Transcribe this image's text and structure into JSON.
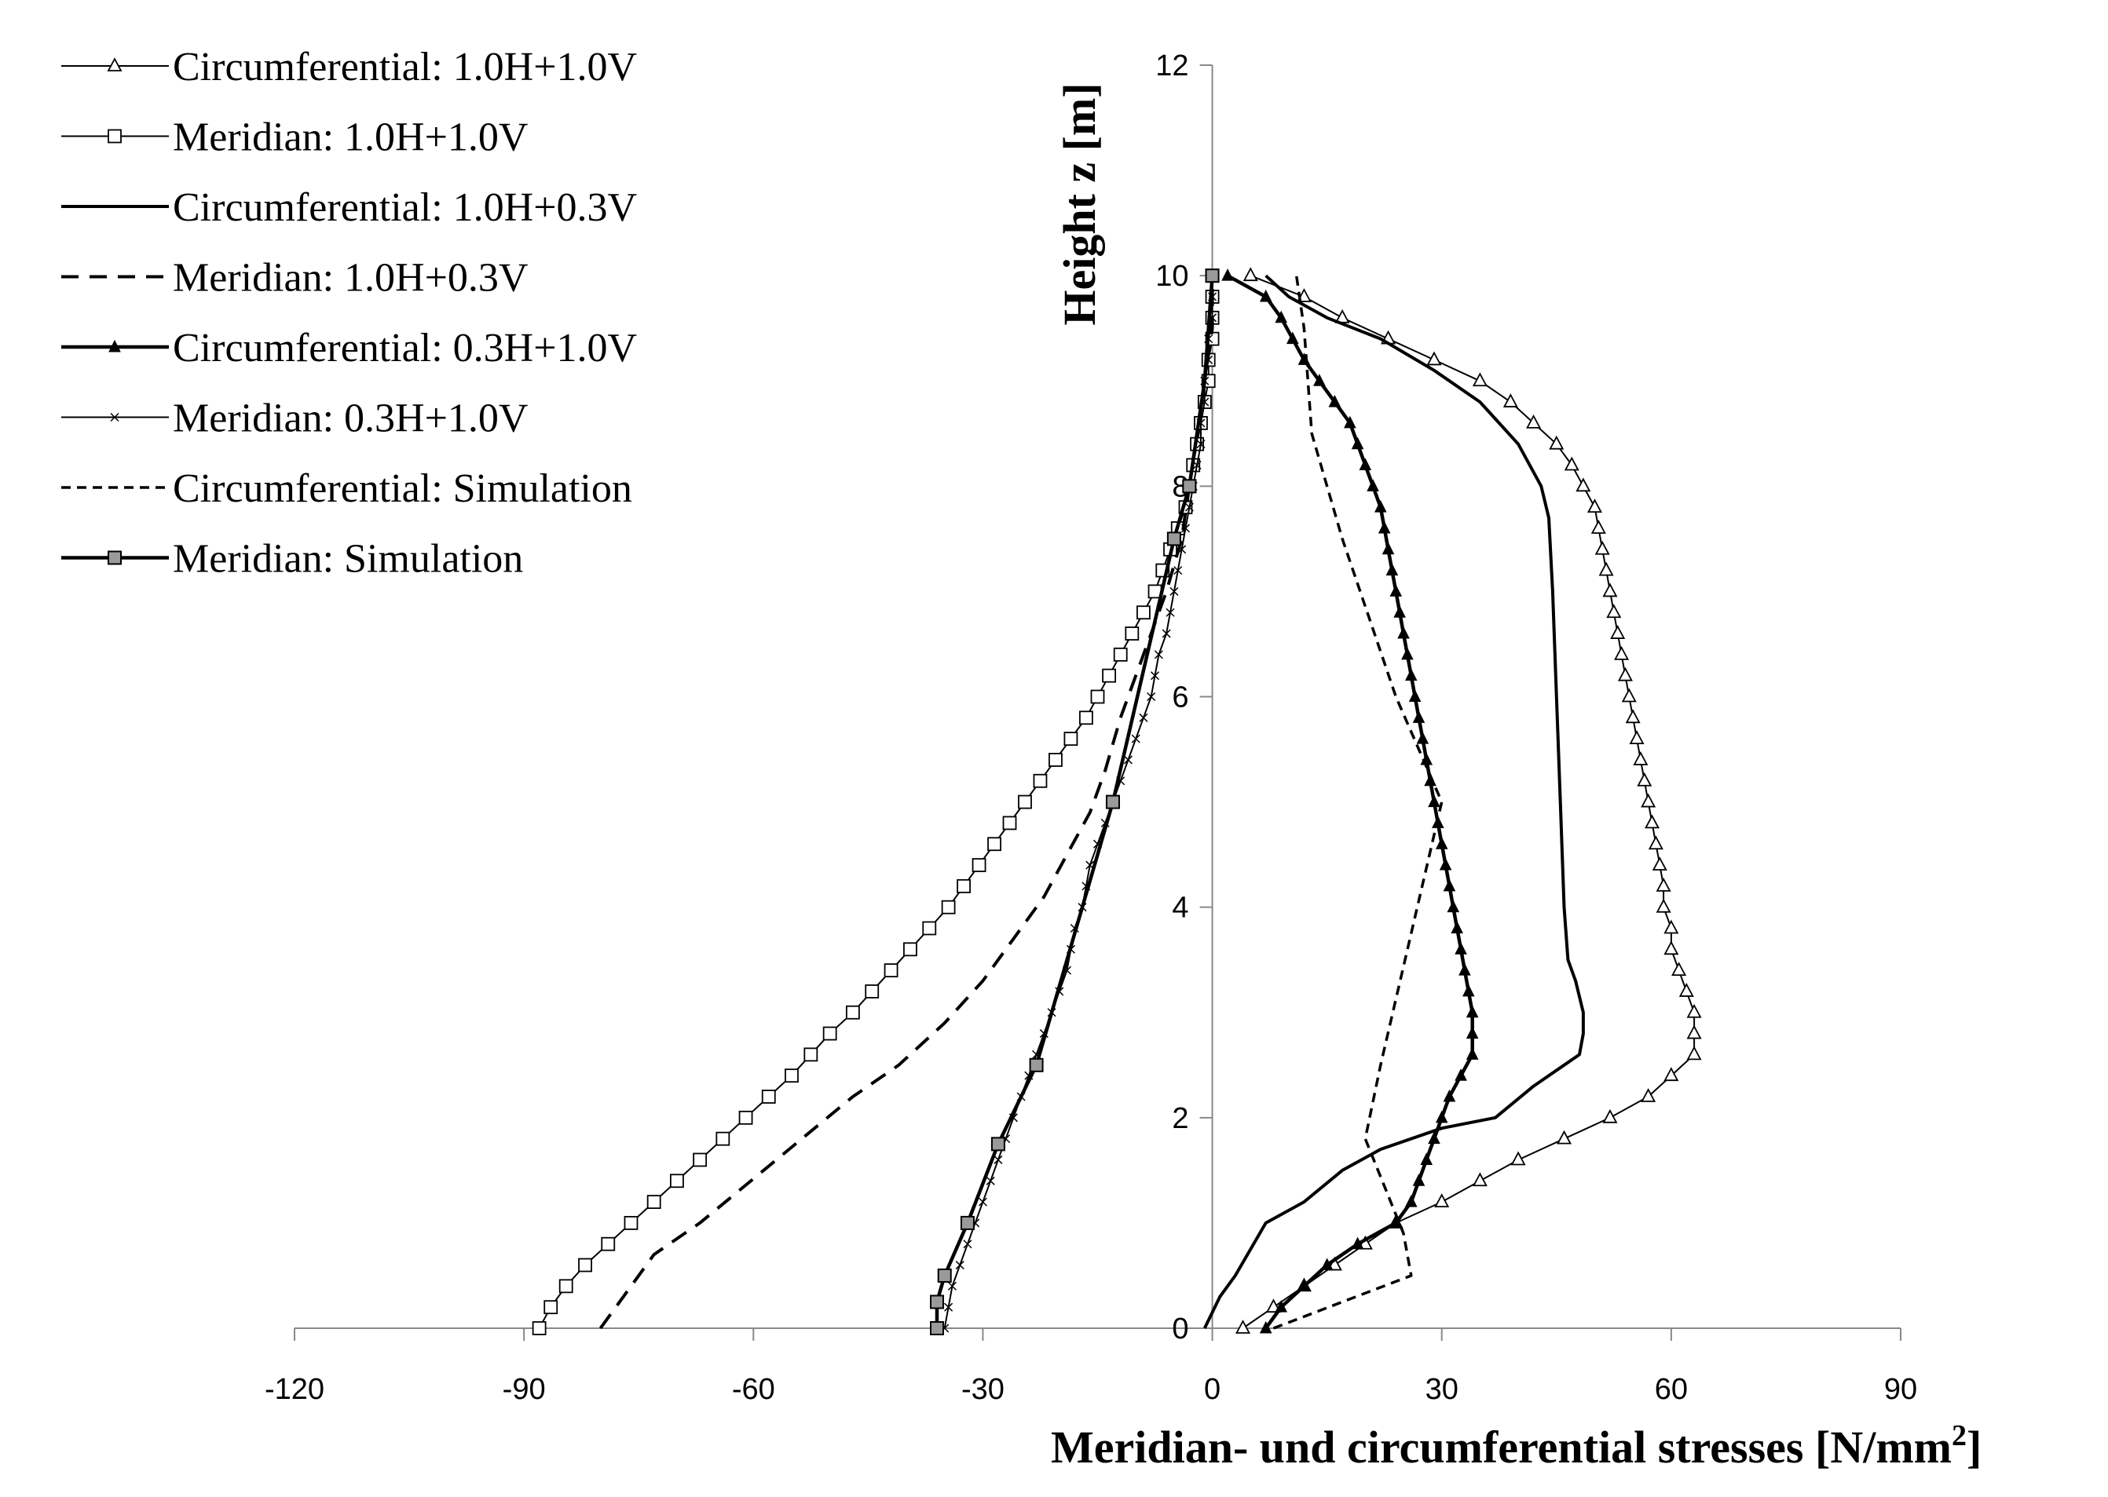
{
  "chart_data": {
    "type": "line",
    "title": "",
    "xlabel": "Meridian- und circumferential stresses [N/mm²]",
    "xlabel_main": "Meridian- und circumferential stresses [N/mm",
    "xlabel_sup": "2",
    "xlabel_end": "]",
    "ylabel": "Height  z [m]",
    "xlim": [
      -120,
      90
    ],
    "ylim": [
      0,
      12
    ],
    "xticks": [
      -120,
      -90,
      -60,
      -30,
      0,
      30,
      60,
      90
    ],
    "xtick_labels": [
      "-120",
      "-90",
      "-60",
      "-30",
      "0",
      "30",
      "60",
      "90"
    ],
    "yticks": [
      0,
      2,
      4,
      6,
      8,
      10,
      12
    ],
    "ytick_labels": [
      "0",
      "2",
      "4",
      "6",
      "8",
      "10",
      "12"
    ],
    "legend_position": "top-left",
    "series": [
      {
        "name": "Circumferential: 1.0H+1.0V",
        "style": "thin",
        "marker": "triangle-open",
        "points": [
          [
            4,
            0
          ],
          [
            8,
            0.2
          ],
          [
            12,
            0.4
          ],
          [
            16,
            0.6
          ],
          [
            20,
            0.8
          ],
          [
            24,
            1.0
          ],
          [
            30,
            1.2
          ],
          [
            35,
            1.4
          ],
          [
            40,
            1.6
          ],
          [
            46,
            1.8
          ],
          [
            52,
            2.0
          ],
          [
            57,
            2.2
          ],
          [
            60,
            2.4
          ],
          [
            63,
            2.6
          ],
          [
            63,
            2.8
          ],
          [
            63,
            3.0
          ],
          [
            62,
            3.2
          ],
          [
            61,
            3.4
          ],
          [
            60,
            3.6
          ],
          [
            60,
            3.8
          ],
          [
            59,
            4.0
          ],
          [
            59,
            4.2
          ],
          [
            58.5,
            4.4
          ],
          [
            58,
            4.6
          ],
          [
            57.5,
            4.8
          ],
          [
            57,
            5.0
          ],
          [
            56.5,
            5.2
          ],
          [
            56,
            5.4
          ],
          [
            55.5,
            5.6
          ],
          [
            55,
            5.8
          ],
          [
            54.5,
            6.0
          ],
          [
            54,
            6.2
          ],
          [
            53.5,
            6.4
          ],
          [
            53,
            6.6
          ],
          [
            52.5,
            6.8
          ],
          [
            52,
            7.0
          ],
          [
            51.5,
            7.2
          ],
          [
            51,
            7.4
          ],
          [
            50.5,
            7.6
          ],
          [
            50,
            7.8
          ],
          [
            48.5,
            8.0
          ],
          [
            47,
            8.2
          ],
          [
            45,
            8.4
          ],
          [
            42,
            8.6
          ],
          [
            39,
            8.8
          ],
          [
            35,
            9.0
          ],
          [
            29,
            9.2
          ],
          [
            23,
            9.4
          ],
          [
            17,
            9.6
          ],
          [
            12,
            9.8
          ],
          [
            5,
            10.0
          ]
        ]
      },
      {
        "name": "Meridian: 1.0H+1.0V",
        "style": "thin",
        "marker": "square-open",
        "points": [
          [
            -88,
            0
          ],
          [
            -86.5,
            0.2
          ],
          [
            -84.5,
            0.4
          ],
          [
            -82,
            0.6
          ],
          [
            -79,
            0.8
          ],
          [
            -76,
            1.0
          ],
          [
            -73,
            1.2
          ],
          [
            -70,
            1.4
          ],
          [
            -67,
            1.6
          ],
          [
            -64,
            1.8
          ],
          [
            -61,
            2.0
          ],
          [
            -58,
            2.2
          ],
          [
            -55,
            2.4
          ],
          [
            -52.5,
            2.6
          ],
          [
            -50,
            2.8
          ],
          [
            -47,
            3.0
          ],
          [
            -44.5,
            3.2
          ],
          [
            -42,
            3.4
          ],
          [
            -39.5,
            3.6
          ],
          [
            -37,
            3.8
          ],
          [
            -34.5,
            4.0
          ],
          [
            -32.5,
            4.2
          ],
          [
            -30.5,
            4.4
          ],
          [
            -28.5,
            4.6
          ],
          [
            -26.5,
            4.8
          ],
          [
            -24.5,
            5.0
          ],
          [
            -22.5,
            5.2
          ],
          [
            -20.5,
            5.4
          ],
          [
            -18.5,
            5.6
          ],
          [
            -16.5,
            5.8
          ],
          [
            -15,
            6.0
          ],
          [
            -13.5,
            6.2
          ],
          [
            -12,
            6.4
          ],
          [
            -10.5,
            6.6
          ],
          [
            -9,
            6.8
          ],
          [
            -7.5,
            7.0
          ],
          [
            -6.5,
            7.2
          ],
          [
            -5.5,
            7.4
          ],
          [
            -4.5,
            7.6
          ],
          [
            -3.5,
            7.8
          ],
          [
            -3,
            8.0
          ],
          [
            -2.5,
            8.2
          ],
          [
            -2,
            8.4
          ],
          [
            -1.5,
            8.6
          ],
          [
            -1,
            8.8
          ],
          [
            -0.5,
            9.0
          ],
          [
            -0.5,
            9.2
          ],
          [
            0,
            9.4
          ],
          [
            0,
            9.6
          ],
          [
            0,
            9.8
          ],
          [
            0,
            10.0
          ]
        ]
      },
      {
        "name": "Circumferential: 1.0H+0.3V",
        "style": "solid",
        "points": [
          [
            -1,
            0
          ],
          [
            1,
            0.3
          ],
          [
            3,
            0.5
          ],
          [
            7,
            1.0
          ],
          [
            12,
            1.2
          ],
          [
            17,
            1.5
          ],
          [
            22,
            1.7
          ],
          [
            30,
            1.9
          ],
          [
            37,
            2.0
          ],
          [
            42,
            2.3
          ],
          [
            46,
            2.5
          ],
          [
            48,
            2.6
          ],
          [
            48.5,
            2.8
          ],
          [
            48.5,
            3.0
          ],
          [
            47.5,
            3.3
          ],
          [
            46.5,
            3.5
          ],
          [
            46,
            4.0
          ],
          [
            45.5,
            5.0
          ],
          [
            45,
            6.0
          ],
          [
            44.5,
            7.0
          ],
          [
            44,
            7.7
          ],
          [
            43,
            8.0
          ],
          [
            40,
            8.4
          ],
          [
            35,
            8.8
          ],
          [
            29,
            9.1
          ],
          [
            22,
            9.4
          ],
          [
            15,
            9.6
          ],
          [
            10,
            9.8
          ],
          [
            7,
            10.0
          ]
        ]
      },
      {
        "name": "Meridian: 1.0H+0.3V",
        "style": "dashed",
        "points": [
          [
            -80,
            0
          ],
          [
            -78,
            0.2
          ],
          [
            -76,
            0.4
          ],
          [
            -73,
            0.7
          ],
          [
            -67,
            1.0
          ],
          [
            -62,
            1.3
          ],
          [
            -57,
            1.6
          ],
          [
            -52,
            1.9
          ],
          [
            -47,
            2.2
          ],
          [
            -41,
            2.5
          ],
          [
            -35,
            2.9
          ],
          [
            -30,
            3.3
          ],
          [
            -26,
            3.7
          ],
          [
            -22,
            4.1
          ],
          [
            -19,
            4.5
          ],
          [
            -16,
            4.9
          ],
          [
            -14,
            5.3
          ],
          [
            -12,
            5.8
          ],
          [
            -10,
            6.2
          ],
          [
            -8,
            6.6
          ],
          [
            -6,
            7.0
          ],
          [
            -4,
            7.5
          ],
          [
            -3,
            8.0
          ],
          [
            -2,
            8.5
          ],
          [
            -1,
            9.0
          ],
          [
            0,
            9.5
          ],
          [
            0,
            10.0
          ]
        ]
      },
      {
        "name": "Circumferential: 0.3H+1.0V",
        "style": "solid-thick",
        "marker": "triangle-filled",
        "points": [
          [
            7,
            0
          ],
          [
            9,
            0.2
          ],
          [
            12,
            0.4
          ],
          [
            15,
            0.6
          ],
          [
            19,
            0.8
          ],
          [
            24,
            1.0
          ],
          [
            26,
            1.2
          ],
          [
            27,
            1.4
          ],
          [
            28,
            1.6
          ],
          [
            29,
            1.8
          ],
          [
            30,
            2.0
          ],
          [
            31,
            2.2
          ],
          [
            32.5,
            2.4
          ],
          [
            34,
            2.6
          ],
          [
            34,
            2.8
          ],
          [
            34,
            3.0
          ],
          [
            33.5,
            3.2
          ],
          [
            33,
            3.4
          ],
          [
            32.5,
            3.6
          ],
          [
            32,
            3.8
          ],
          [
            31.5,
            4.0
          ],
          [
            31,
            4.2
          ],
          [
            30.5,
            4.4
          ],
          [
            30,
            4.6
          ],
          [
            29.5,
            4.8
          ],
          [
            29,
            5.0
          ],
          [
            28.5,
            5.2
          ],
          [
            28,
            5.4
          ],
          [
            27.5,
            5.6
          ],
          [
            27,
            5.8
          ],
          [
            26.5,
            6.0
          ],
          [
            26,
            6.2
          ],
          [
            25.5,
            6.4
          ],
          [
            25,
            6.6
          ],
          [
            24.5,
            6.8
          ],
          [
            24,
            7.0
          ],
          [
            23.5,
            7.2
          ],
          [
            23,
            7.4
          ],
          [
            22.5,
            7.6
          ],
          [
            22,
            7.8
          ],
          [
            21,
            8.0
          ],
          [
            20,
            8.2
          ],
          [
            19,
            8.4
          ],
          [
            18,
            8.6
          ],
          [
            16,
            8.8
          ],
          [
            14,
            9.0
          ],
          [
            12,
            9.2
          ],
          [
            10.5,
            9.4
          ],
          [
            9,
            9.6
          ],
          [
            7,
            9.8
          ],
          [
            2,
            10.0
          ]
        ]
      },
      {
        "name": "Meridian: 0.3H+1.0V",
        "style": "thin",
        "marker": "x",
        "points": [
          [
            -35,
            0
          ],
          [
            -34.5,
            0.2
          ],
          [
            -34,
            0.4
          ],
          [
            -33,
            0.6
          ],
          [
            -32,
            0.8
          ],
          [
            -31,
            1.0
          ],
          [
            -30,
            1.2
          ],
          [
            -29,
            1.4
          ],
          [
            -28,
            1.6
          ],
          [
            -27,
            1.8
          ],
          [
            -26,
            2.0
          ],
          [
            -25,
            2.2
          ],
          [
            -24,
            2.4
          ],
          [
            -23,
            2.6
          ],
          [
            -22,
            2.8
          ],
          [
            -21,
            3.0
          ],
          [
            -20,
            3.2
          ],
          [
            -19,
            3.4
          ],
          [
            -18.5,
            3.6
          ],
          [
            -18,
            3.8
          ],
          [
            -17,
            4.0
          ],
          [
            -16.5,
            4.2
          ],
          [
            -16,
            4.4
          ],
          [
            -15,
            4.6
          ],
          [
            -14,
            4.8
          ],
          [
            -13,
            5.0
          ],
          [
            -12,
            5.2
          ],
          [
            -11,
            5.4
          ],
          [
            -10,
            5.6
          ],
          [
            -9,
            5.8
          ],
          [
            -8,
            6.0
          ],
          [
            -7.5,
            6.2
          ],
          [
            -7,
            6.4
          ],
          [
            -6,
            6.6
          ],
          [
            -5.5,
            6.8
          ],
          [
            -5,
            7.0
          ],
          [
            -4.5,
            7.2
          ],
          [
            -4,
            7.4
          ],
          [
            -3.5,
            7.6
          ],
          [
            -3,
            7.8
          ],
          [
            -2.5,
            8.0
          ],
          [
            -2,
            8.2
          ],
          [
            -1.5,
            8.4
          ],
          [
            -1.5,
            8.6
          ],
          [
            -1,
            8.8
          ],
          [
            -1,
            9.0
          ],
          [
            -0.5,
            9.2
          ],
          [
            -0.5,
            9.4
          ],
          [
            0,
            9.6
          ],
          [
            0,
            9.8
          ],
          [
            0,
            10.0
          ]
        ]
      },
      {
        "name": "Circumferential: Simulation",
        "style": "dashed-short",
        "points": [
          [
            8,
            0
          ],
          [
            26,
            0.5
          ],
          [
            25,
            0.9
          ],
          [
            20,
            1.8
          ],
          [
            22,
            2.5
          ],
          [
            30,
            5.0
          ],
          [
            24,
            6.0
          ],
          [
            17,
            7.5
          ],
          [
            13,
            8.5
          ],
          [
            12,
            9.5
          ],
          [
            11,
            10.0
          ]
        ]
      },
      {
        "name": "Meridian: Simulation",
        "style": "solid-thick",
        "marker": "square-gray",
        "points": [
          [
            -36,
            0
          ],
          [
            -36,
            0.25
          ],
          [
            -35,
            0.5
          ],
          [
            -32,
            1.0
          ],
          [
            -28,
            1.75
          ],
          [
            -23,
            2.5
          ],
          [
            -13,
            5.0
          ],
          [
            -5,
            7.5
          ],
          [
            -3,
            8.0
          ],
          [
            -1,
            9.0
          ],
          [
            0,
            10.0
          ]
        ],
        "marker_indices": [
          0,
          1,
          2,
          3,
          4,
          5,
          6,
          7,
          8,
          10
        ]
      }
    ]
  }
}
